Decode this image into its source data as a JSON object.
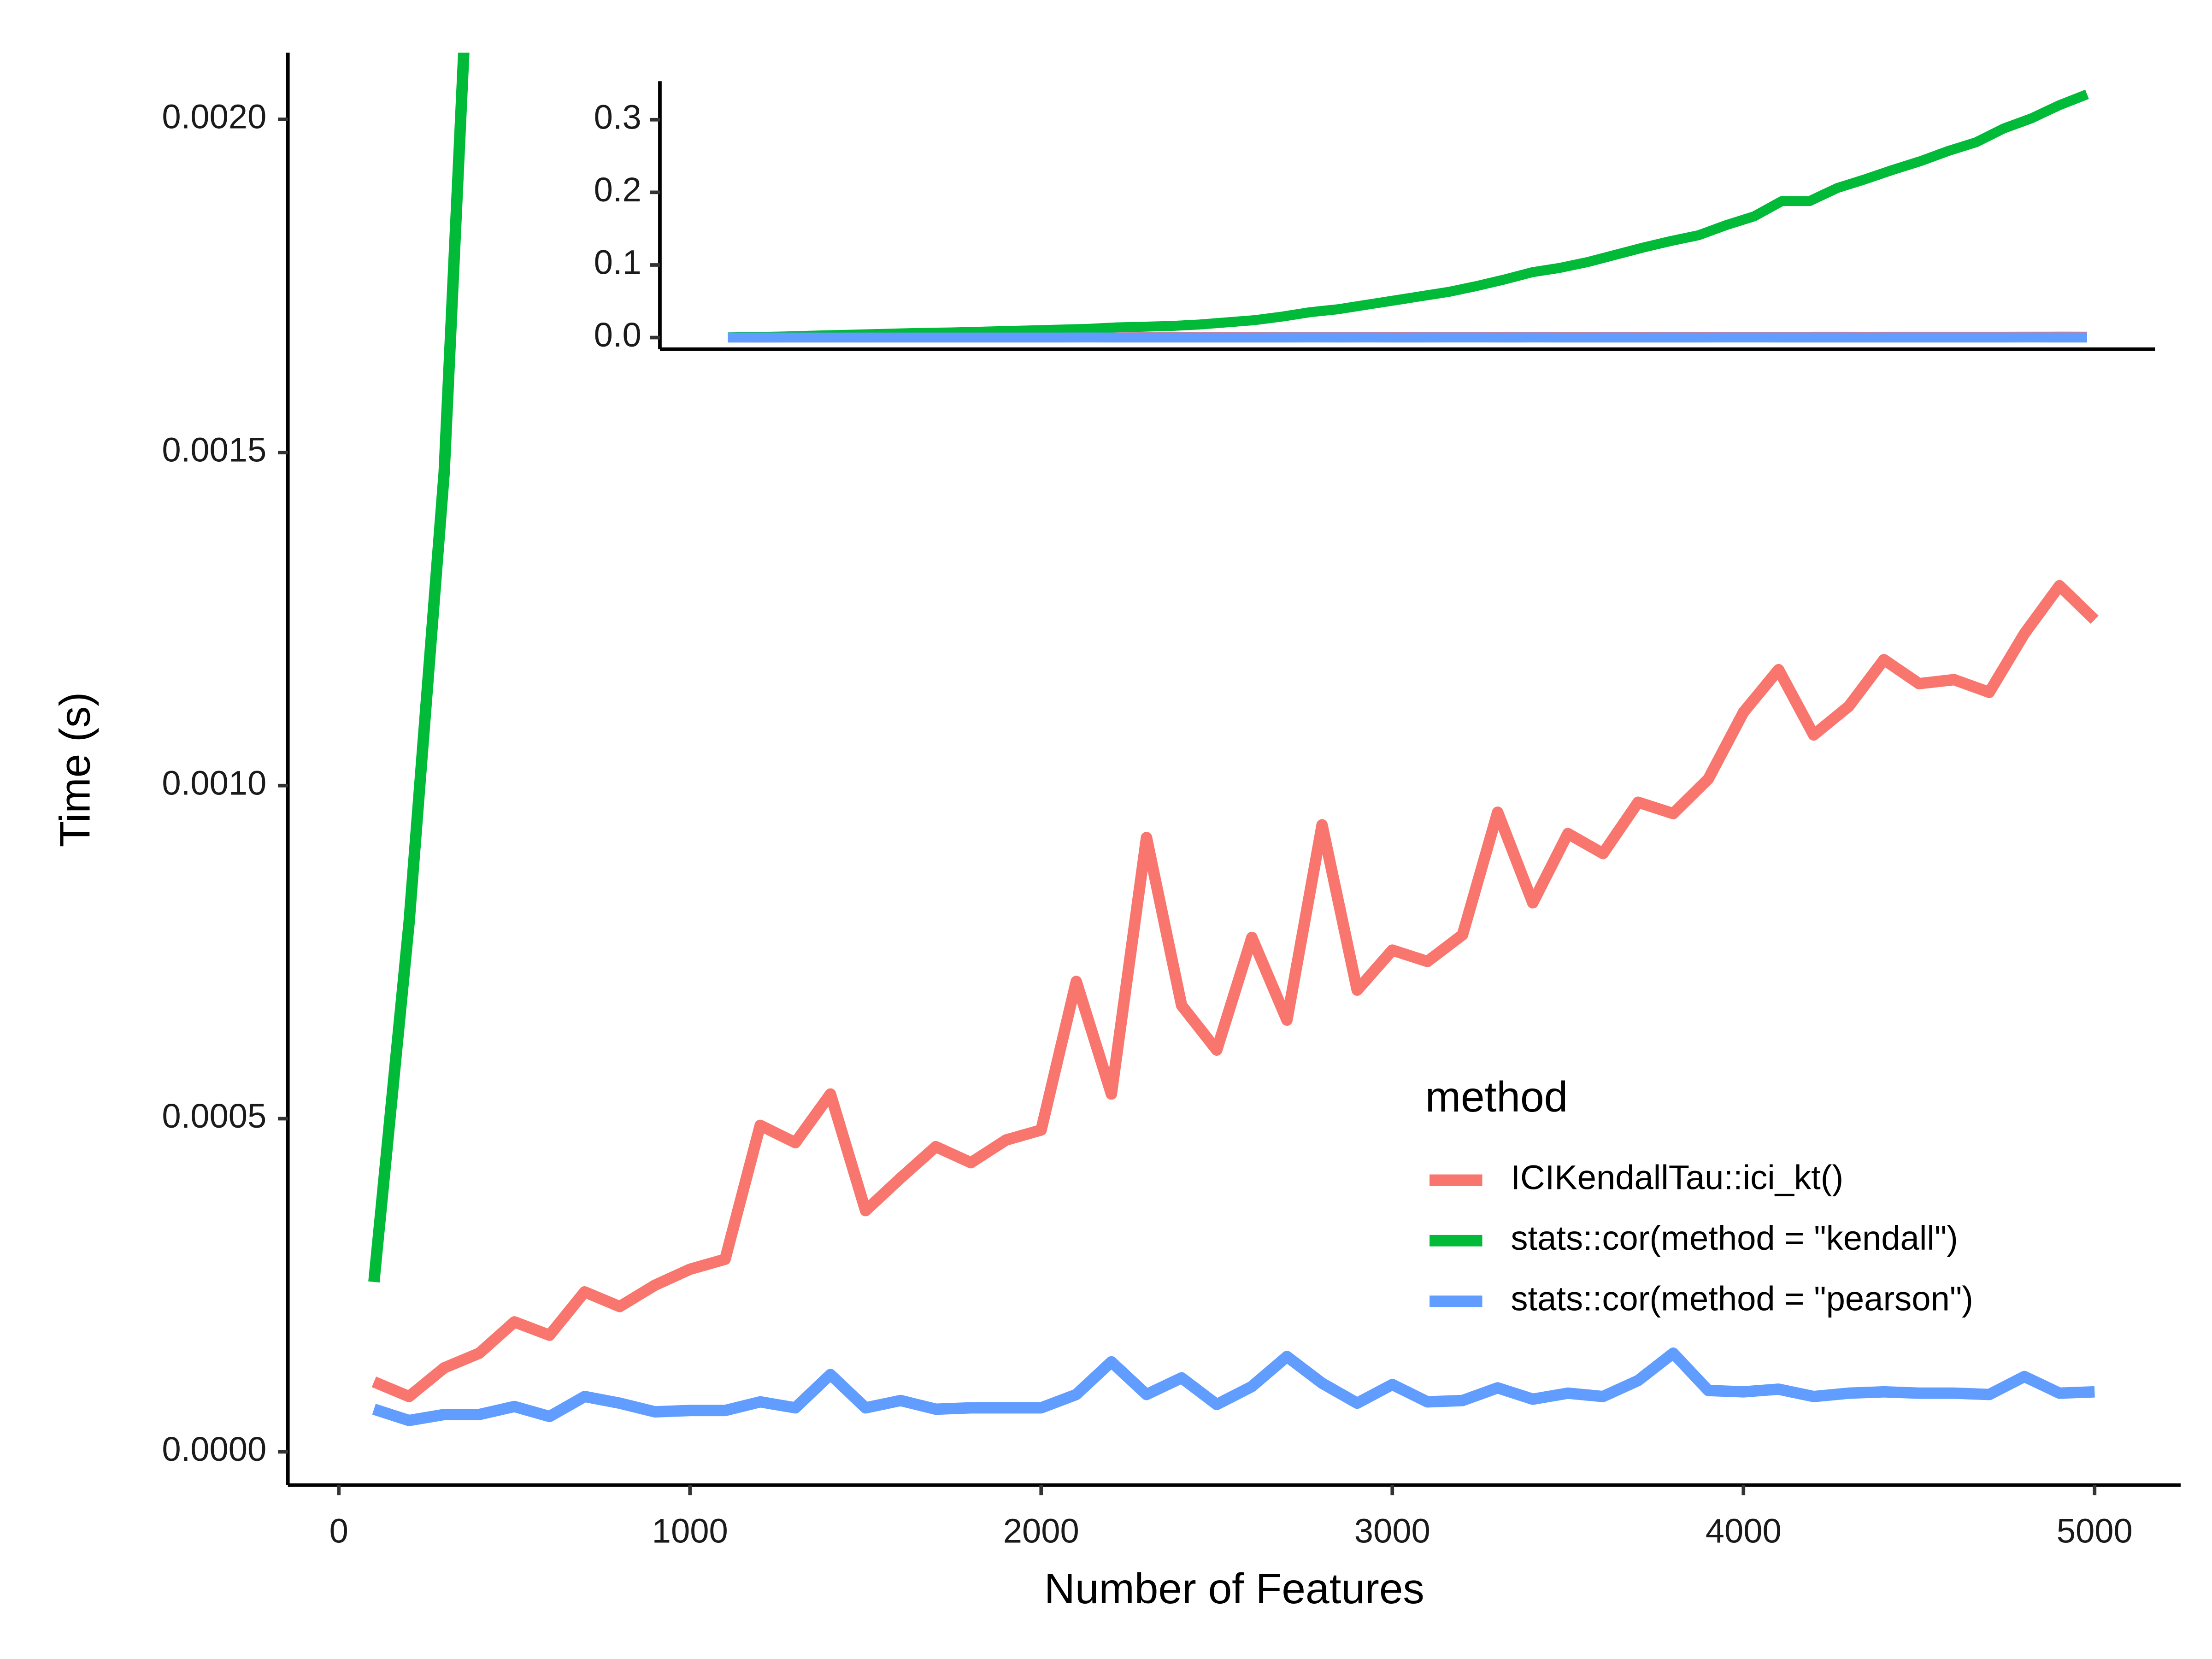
{
  "chart_data": {
    "type": "line",
    "x_label": "Number of Features",
    "y_label": "Time (s)",
    "legend_title": "method",
    "x": [
      100,
      200,
      300,
      400,
      500,
      600,
      700,
      800,
      900,
      1000,
      1100,
      1200,
      1300,
      1400,
      1500,
      1600,
      1700,
      1800,
      1900,
      2000,
      2100,
      2200,
      2300,
      2400,
      2500,
      2600,
      2700,
      2800,
      2900,
      3000,
      3100,
      3200,
      3300,
      3400,
      3500,
      3600,
      3700,
      3800,
      3900,
      4000,
      4100,
      4200,
      4300,
      4400,
      4500,
      4600,
      4700,
      4800,
      4900,
      5000
    ],
    "series": [
      {
        "name": "ICIKendallTau::ici_kt()",
        "color": "#F8766D",
        "values": [
          0.000105,
          8.3e-05,
          0.000126,
          0.000148,
          0.000195,
          0.000175,
          0.00024,
          0.000218,
          0.00025,
          0.000274,
          0.000289,
          0.00049,
          0.000464,
          0.000537,
          0.000362,
          0.000411,
          0.000458,
          0.000434,
          0.000468,
          0.000483,
          0.000706,
          0.000537,
          0.000922,
          0.00067,
          0.000603,
          0.000772,
          0.000648,
          0.000941,
          0.000693,
          0.000753,
          0.000736,
          0.000776,
          0.00096,
          0.000824,
          0.000928,
          0.000898,
          0.000975,
          0.000958,
          0.00101,
          0.00111,
          0.001174,
          0.001076,
          0.001119,
          0.001189,
          0.001153,
          0.001159,
          0.00114,
          0.001228,
          0.0013,
          0.001249
        ]
      },
      {
        "name": "stats::cor(method = \"kendall\")",
        "color": "#00BA38",
        "values": [
          0.000255,
          0.000794,
          0.00147,
          0.0026,
          0.0035,
          0.0045,
          0.0055,
          0.0065,
          0.007,
          0.008,
          0.009,
          0.01,
          0.011,
          0.012,
          0.014,
          0.015,
          0.016,
          0.018,
          0.021,
          0.024,
          0.029,
          0.035,
          0.039,
          0.045,
          0.051,
          0.057,
          0.063,
          0.071,
          0.08,
          0.09,
          0.096,
          0.104,
          0.114,
          0.124,
          0.133,
          0.141,
          0.155,
          0.167,
          0.188,
          0.188,
          0.206,
          0.218,
          0.231,
          0.243,
          0.257,
          0.269,
          0.288,
          0.302,
          0.32,
          0.335
        ]
      },
      {
        "name": "stats::cor(method = \"pearson\")",
        "color": "#619CFF",
        "values": [
          6.4e-05,
          4.7e-05,
          5.6e-05,
          5.6e-05,
          6.8e-05,
          5.3e-05,
          8.3e-05,
          7.3e-05,
          6e-05,
          6.2e-05,
          6.2e-05,
          7.5e-05,
          6.6e-05,
          0.000116,
          6.6e-05,
          7.7e-05,
          6.4e-05,
          6.6e-05,
          6.6e-05,
          6.6e-05,
          8.6e-05,
          0.000135,
          8.6e-05,
          0.000111,
          7.1e-05,
          9.8e-05,
          0.000143,
          0.000103,
          7.3e-05,
          0.000101,
          7.5e-05,
          7.7e-05,
          9.6e-05,
          7.9e-05,
          8.8e-05,
          8.3e-05,
          0.000107,
          0.000148,
          9.2e-05,
          9e-05,
          9.4e-05,
          8.3e-05,
          8.8e-05,
          9e-05,
          8.8e-05,
          8.8e-05,
          8.6e-05,
          0.000113,
          8.8e-05,
          9e-05
        ]
      }
    ],
    "xlim": [
      -145,
      5245
    ],
    "xticks": [
      0,
      1000,
      2000,
      3000,
      4000,
      5000
    ],
    "ylim": [
      -5e-05,
      0.0021
    ],
    "yticks": [
      {
        "value": 0,
        "label": "0.0000"
      },
      {
        "value": 0.0005,
        "label": "0.0005"
      },
      {
        "value": 0.001,
        "label": "0.0010"
      },
      {
        "value": 0.0015,
        "label": "0.0015"
      },
      {
        "value": 0.002,
        "label": "0.0020"
      }
    ],
    "grid": false,
    "inset": {
      "ylim": [
        -0.016,
        0.353
      ],
      "yticks": [
        {
          "value": 0,
          "label": "0.0"
        },
        0.1,
        0.2,
        0.3
      ]
    }
  }
}
